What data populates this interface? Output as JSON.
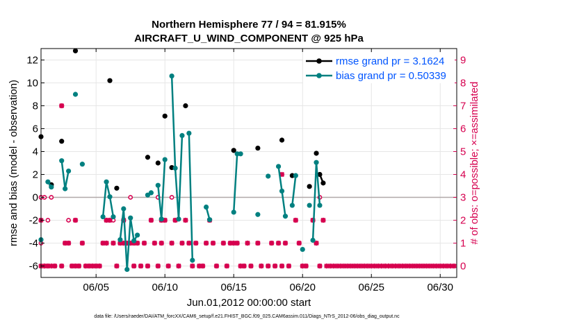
{
  "chart_data": {
    "type": "line",
    "title": "Northern Hemisphere 77 / 94 = 81.915%",
    "subtitle": "AIRCRAFT_U_WIND_COMPONENT @ 925 hPa",
    "xlabel": "Jun.01,2012 00:00:00 start",
    "ylabel": "rmse and bias (model - observation)",
    "ylabel_right": "# of obs: o=possible; ×=assimilated",
    "footnote": "data file: /Users/raeder/DAI/ATM_forcXX/CAM6_setup/f.e21.FHIST_BGC.f09_025.CAM6assim.011/Diags_NTrS_2012-06/obs_diag_output.nc",
    "xlim": [
      1,
      31.2
    ],
    "ylim": [
      -7,
      13
    ],
    "ylim_right": [
      -0.5,
      9.5
    ],
    "x_ticks": [
      5,
      10,
      15,
      20,
      25,
      30
    ],
    "x_tick_labels": [
      "06/05",
      "06/10",
      "06/15",
      "06/20",
      "06/25",
      "06/30"
    ],
    "y_ticks": [
      -6,
      -4,
      -2,
      0,
      2,
      4,
      6,
      8,
      10,
      12
    ],
    "y_tick_labels": [
      "-6",
      "-4",
      "-2",
      "0",
      "2",
      "4",
      "6",
      "8",
      "10",
      "12"
    ],
    "y_right_ticks": [
      0,
      1,
      2,
      3,
      4,
      5,
      6,
      7,
      8,
      9
    ],
    "y_right_tick_labels": [
      "0",
      "1",
      "2",
      "3",
      "4",
      "5",
      "6",
      "7",
      "8",
      "9"
    ],
    "grid": true,
    "legend_position": "top-right",
    "colors": {
      "rmse": "#000000",
      "bias": "#008080",
      "obs": "#d6004f",
      "zero": "#b0a8a8"
    },
    "series": [
      {
        "name": "rmse grand pr = 3.1624",
        "segments": [
          [
            [
              1.0,
              5.3
            ]
          ],
          [
            [
              1.75,
              1.1
            ]
          ],
          [
            [
              2.5,
              4.9
            ]
          ],
          [
            [
              3.5,
              12.8
            ]
          ],
          [
            [
              6.0,
              10.2
            ]
          ],
          [
            [
              6.5,
              0.8
            ]
          ],
          [
            [
              8.75,
              3.5
            ]
          ],
          [
            [
              9.5,
              3.0
            ]
          ],
          [
            [
              10.0,
              7.1
            ]
          ],
          [
            [
              10.5,
              2.6
            ]
          ],
          [
            [
              11.5,
              8.0
            ]
          ],
          [
            [
              15.0,
              4.1
            ]
          ],
          [
            [
              16.75,
              4.3
            ]
          ],
          [
            [
              18.5,
              5.0
            ]
          ],
          [
            [
              19.25,
              1.9
            ]
          ],
          [
            [
              20.5,
              0.95
            ]
          ],
          [
            [
              21.0,
              3.85
            ]
          ],
          [
            [
              21.25,
              2.0
            ],
            [
              21.5,
              1.25
            ]
          ]
        ]
      },
      {
        "name": "bias grand pr = 0.50339",
        "segments": [
          [
            [
              1.0,
              -3.7
            ]
          ],
          [
            [
              1.5,
              1.35
            ],
            [
              1.75,
              0.9
            ]
          ],
          [
            [
              2.5,
              3.2
            ],
            [
              2.75,
              0.75
            ],
            [
              3.0,
              2.3
            ]
          ],
          [
            [
              3.5,
              9.0
            ]
          ],
          [
            [
              4.0,
              2.9
            ]
          ],
          [
            [
              5.5,
              -1.7
            ],
            [
              5.75,
              1.35
            ],
            [
              6.0,
              0.05
            ],
            [
              6.25,
              -1.7
            ]
          ],
          [
            [
              6.75,
              -3.7
            ],
            [
              7.0,
              -1.0
            ],
            [
              7.25,
              -6.3
            ],
            [
              7.5,
              -1.8
            ],
            [
              7.75,
              -3.8
            ],
            [
              8.0,
              -3.3
            ]
          ],
          [
            [
              8.75,
              0.2
            ],
            [
              9.0,
              0.4
            ]
          ],
          [
            [
              9.5,
              1.05
            ],
            [
              9.75,
              -1.9
            ],
            [
              10.0,
              3.3
            ]
          ],
          [
            [
              10.5,
              10.6
            ],
            [
              10.75,
              2.55
            ],
            [
              11.0,
              -1.9
            ],
            [
              11.25,
              5.4
            ]
          ],
          [
            [
              11.75,
              5.6
            ],
            [
              12.0,
              -5.5
            ]
          ],
          [
            [
              13.0,
              -0.85
            ],
            [
              13.25,
              -1.95
            ]
          ],
          [
            [
              15.0,
              -1.3
            ],
            [
              15.25,
              3.8
            ],
            [
              15.5,
              3.8
            ]
          ],
          [
            [
              16.75,
              -1.5
            ]
          ],
          [
            [
              17.5,
              1.85
            ]
          ],
          [
            [
              18.25,
              2.7
            ],
            [
              18.5,
              0.55
            ],
            [
              18.75,
              -1.65
            ]
          ],
          [
            [
              19.25,
              -0.7
            ],
            [
              19.5,
              1.9
            ]
          ],
          [
            [
              20.0,
              -4.55
            ]
          ],
          [
            [
              20.5,
              -0.7
            ]
          ],
          [
            [
              20.75,
              -3.75
            ],
            [
              21.0,
              3.05
            ],
            [
              21.25,
              -0.7
            ]
          ]
        ]
      }
    ],
    "obs_possible_points": [
      [
        1.0,
        3
      ],
      [
        1.0,
        1
      ],
      [
        1.25,
        3
      ],
      [
        1.25,
        0
      ],
      [
        1.5,
        2
      ],
      [
        1.5,
        0
      ],
      [
        1.75,
        3
      ],
      [
        2.0,
        0
      ],
      [
        2.5,
        7
      ],
      [
        2.5,
        0
      ],
      [
        2.75,
        1
      ],
      [
        3.0,
        2
      ],
      [
        3.0,
        1
      ],
      [
        3.25,
        0
      ],
      [
        3.5,
        2
      ],
      [
        3.5,
        0
      ],
      [
        3.75,
        0
      ],
      [
        4.0,
        1
      ],
      [
        4.25,
        0
      ],
      [
        4.5,
        0
      ],
      [
        4.75,
        0
      ],
      [
        5.0,
        0
      ],
      [
        5.25,
        0
      ],
      [
        5.5,
        1
      ],
      [
        5.75,
        1
      ],
      [
        5.75,
        2
      ],
      [
        6.0,
        2
      ],
      [
        6.25,
        1
      ],
      [
        6.25,
        2
      ],
      [
        6.5,
        0
      ],
      [
        6.75,
        1
      ],
      [
        7.0,
        1
      ],
      [
        7.0,
        2
      ],
      [
        7.25,
        1
      ],
      [
        7.5,
        3
      ],
      [
        7.5,
        1
      ],
      [
        7.75,
        1
      ],
      [
        7.75,
        0
      ],
      [
        8.0,
        1
      ],
      [
        8.25,
        0
      ],
      [
        8.5,
        1
      ],
      [
        8.75,
        0
      ],
      [
        9.0,
        2
      ],
      [
        9.25,
        1
      ],
      [
        9.5,
        3
      ],
      [
        9.5,
        0
      ],
      [
        9.75,
        2
      ],
      [
        9.75,
        1
      ],
      [
        10.0,
        2
      ],
      [
        10.25,
        0
      ],
      [
        10.5,
        3
      ],
      [
        10.5,
        1
      ],
      [
        10.75,
        2
      ],
      [
        11.0,
        0
      ],
      [
        11.25,
        1
      ],
      [
        11.5,
        2
      ],
      [
        11.75,
        1
      ],
      [
        12.0,
        0
      ],
      [
        12.25,
        1
      ],
      [
        12.5,
        0
      ],
      [
        12.75,
        0
      ],
      [
        13.0,
        1
      ],
      [
        13.25,
        2
      ],
      [
        13.5,
        1
      ],
      [
        13.75,
        0
      ],
      [
        14.25,
        1
      ],
      [
        14.5,
        0
      ],
      [
        14.75,
        1
      ],
      [
        15.0,
        1
      ],
      [
        15.25,
        1
      ],
      [
        15.5,
        0
      ],
      [
        15.75,
        0
      ],
      [
        16.0,
        1
      ],
      [
        16.25,
        0
      ],
      [
        16.75,
        1
      ],
      [
        17.0,
        0
      ],
      [
        17.5,
        0
      ],
      [
        17.75,
        1
      ],
      [
        18.0,
        0
      ],
      [
        18.25,
        1
      ],
      [
        18.5,
        0
      ],
      [
        18.75,
        1
      ],
      [
        19.0,
        0
      ],
      [
        19.5,
        2
      ],
      [
        19.75,
        1
      ],
      [
        20.0,
        0
      ],
      [
        20.25,
        0
      ],
      [
        20.75,
        2
      ],
      [
        21.0,
        1
      ],
      [
        21.25,
        3
      ],
      [
        21.25,
        0
      ],
      [
        21.5,
        2
      ]
    ],
    "obs_assimilated_points": [
      [
        1.0,
        2
      ],
      [
        1.0,
        0
      ],
      [
        1.25,
        0
      ],
      [
        1.5,
        0
      ],
      [
        1.75,
        0
      ],
      [
        2.0,
        0
      ],
      [
        2.5,
        7
      ],
      [
        2.5,
        0
      ],
      [
        2.75,
        1
      ],
      [
        3.0,
        1
      ],
      [
        3.25,
        0
      ],
      [
        3.5,
        2
      ],
      [
        3.5,
        0
      ],
      [
        3.75,
        0
      ],
      [
        4.0,
        1
      ],
      [
        4.25,
        0
      ],
      [
        4.5,
        0
      ],
      [
        4.75,
        0
      ],
      [
        5.0,
        0
      ],
      [
        5.25,
        0
      ],
      [
        5.5,
        1
      ],
      [
        5.75,
        1
      ],
      [
        5.75,
        2
      ],
      [
        6.0,
        2
      ],
      [
        6.25,
        1
      ],
      [
        6.5,
        0
      ],
      [
        6.75,
        1
      ],
      [
        7.0,
        1
      ],
      [
        7.0,
        2
      ],
      [
        7.25,
        1
      ],
      [
        7.5,
        1
      ],
      [
        7.75,
        1
      ],
      [
        7.75,
        0
      ],
      [
        8.0,
        1
      ],
      [
        8.25,
        0
      ],
      [
        8.5,
        1
      ],
      [
        8.75,
        0
      ],
      [
        9.0,
        2
      ],
      [
        9.25,
        1
      ],
      [
        9.5,
        0
      ],
      [
        9.75,
        2
      ],
      [
        9.75,
        1
      ],
      [
        10.0,
        2
      ],
      [
        10.25,
        0
      ],
      [
        10.5,
        1
      ],
      [
        10.75,
        2
      ],
      [
        11.0,
        0
      ],
      [
        11.25,
        1
      ],
      [
        11.5,
        2
      ],
      [
        11.75,
        1
      ],
      [
        12.0,
        0
      ],
      [
        12.25,
        1
      ],
      [
        12.5,
        0
      ],
      [
        12.75,
        0
      ],
      [
        13.0,
        1
      ],
      [
        13.25,
        2
      ],
      [
        13.5,
        1
      ],
      [
        13.75,
        0
      ],
      [
        14.25,
        1
      ],
      [
        14.5,
        0
      ],
      [
        14.75,
        1
      ],
      [
        15.0,
        1
      ],
      [
        15.25,
        1
      ],
      [
        15.5,
        0
      ],
      [
        15.75,
        0
      ],
      [
        16.0,
        1
      ],
      [
        16.25,
        0
      ],
      [
        16.75,
        1
      ],
      [
        17.0,
        0
      ],
      [
        17.5,
        0
      ],
      [
        17.75,
        1
      ],
      [
        18.0,
        0
      ],
      [
        18.25,
        1
      ],
      [
        18.5,
        4
      ],
      [
        18.5,
        0
      ],
      [
        18.75,
        1
      ],
      [
        19.0,
        0
      ],
      [
        19.5,
        2
      ],
      [
        19.75,
        1
      ],
      [
        20.0,
        0
      ],
      [
        20.25,
        0
      ],
      [
        20.75,
        2
      ],
      [
        21.0,
        1
      ],
      [
        21.25,
        0
      ],
      [
        21.5,
        2
      ],
      [
        21.75,
        0
      ],
      [
        22.0,
        0
      ],
      [
        22.25,
        0
      ],
      [
        22.5,
        0
      ],
      [
        22.75,
        0
      ],
      [
        23.0,
        0
      ],
      [
        23.25,
        0
      ],
      [
        23.5,
        0
      ],
      [
        23.75,
        0
      ],
      [
        24.0,
        0
      ],
      [
        24.25,
        0
      ],
      [
        24.5,
        0
      ],
      [
        24.75,
        0
      ],
      [
        25.0,
        0
      ],
      [
        25.25,
        0
      ],
      [
        25.5,
        0
      ],
      [
        25.75,
        0
      ],
      [
        26.0,
        0
      ],
      [
        26.25,
        0
      ],
      [
        26.5,
        0
      ],
      [
        26.75,
        0
      ],
      [
        27.0,
        0
      ],
      [
        27.25,
        0
      ],
      [
        27.5,
        0
      ],
      [
        27.75,
        0
      ],
      [
        28.0,
        0
      ],
      [
        28.25,
        0
      ],
      [
        28.5,
        0
      ],
      [
        28.75,
        0
      ],
      [
        29.0,
        0
      ],
      [
        29.25,
        0
      ],
      [
        29.5,
        0
      ],
      [
        29.75,
        0
      ],
      [
        30.0,
        0
      ],
      [
        30.25,
        0
      ],
      [
        30.5,
        0
      ],
      [
        30.75,
        0
      ],
      [
        31.0,
        0
      ]
    ]
  }
}
